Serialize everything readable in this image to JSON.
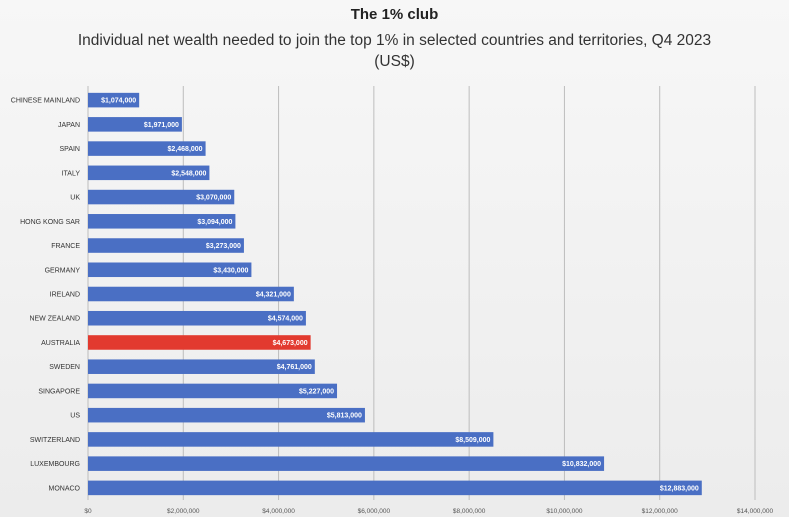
{
  "chart_data": {
    "type": "bar",
    "orientation": "horizontal",
    "title": "The 1% club",
    "subtitle": "Individual net wealth needed to join the top 1% in selected countries and territories, Q4 2023 (US$)",
    "categories": [
      "CHINESE MAINLAND",
      "JAPAN",
      "SPAIN",
      "ITALY",
      "UK",
      "HONG KONG SAR",
      "FRANCE",
      "GERMANY",
      "IRELAND",
      "NEW ZEALAND",
      "AUSTRALIA",
      "SWEDEN",
      "SINGAPORE",
      "US",
      "SWITZERLAND",
      "LUXEMBOURG",
      "MONACO"
    ],
    "values": [
      1074000,
      1971000,
      2468000,
      2548000,
      3070000,
      3094000,
      3273000,
      3430000,
      4321000,
      4574000,
      4673000,
      4761000,
      5227000,
      5813000,
      8509000,
      10832000,
      12883000
    ],
    "value_labels": [
      "$1,074,000",
      "$1,971,000",
      "$2,468,000",
      "$2,548,000",
      "$3,070,000",
      "$3,094,000",
      "$3,273,000",
      "$3,430,000",
      "$4,321,000",
      "$4,574,000",
      "$4,673,000",
      "$4,761,000",
      "$5,227,000",
      "$5,813,000",
      "$8,509,000",
      "$10,832,000",
      "$12,883,000"
    ],
    "highlight": "AUSTRALIA",
    "xlim": [
      0,
      14000000
    ],
    "xticks": [
      0,
      2000000,
      4000000,
      6000000,
      8000000,
      10000000,
      12000000,
      14000000
    ],
    "xtick_labels": [
      "$0",
      "$2,000,000",
      "$4,000,000",
      "$6,000,000",
      "$8,000,000",
      "$10,000,000",
      "$12,000,000",
      "$14,000,000"
    ],
    "grid": true,
    "legend": "none",
    "colors": {
      "bar": "#4a6fc4",
      "highlight": "#e23a2f",
      "grid": "#bdbdbd"
    }
  }
}
